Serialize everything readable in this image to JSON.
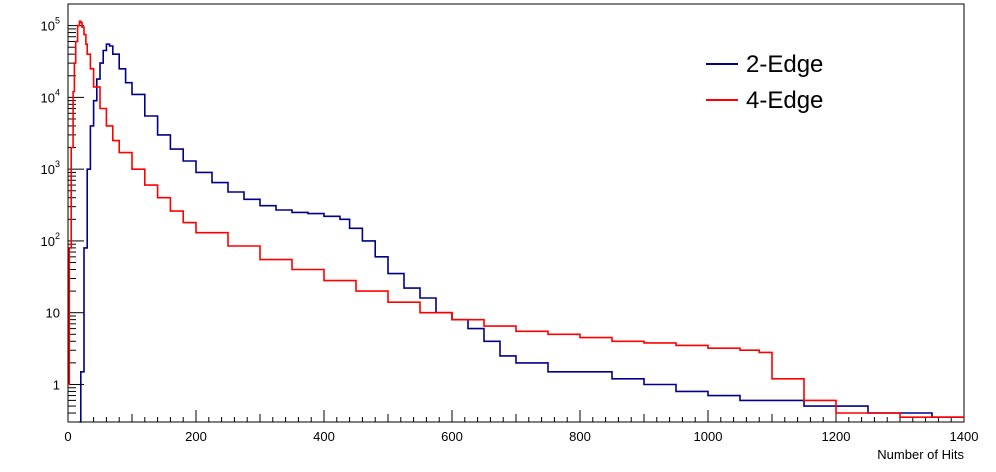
{
  "chart_data": {
    "type": "line",
    "title": "",
    "xlabel": "Number of Hits",
    "ylabel": "",
    "xlim": [
      0,
      1400
    ],
    "y_scale": "log",
    "ylim": [
      0.3,
      200000
    ],
    "x_ticks": [
      {
        "value": 0,
        "label": "0"
      },
      {
        "value": 200,
        "label": "200"
      },
      {
        "value": 400,
        "label": "400"
      },
      {
        "value": 600,
        "label": "600"
      },
      {
        "value": 800,
        "label": "800"
      },
      {
        "value": 1000,
        "label": "1000"
      },
      {
        "value": 1200,
        "label": "1200"
      },
      {
        "value": 1400,
        "label": "1400"
      }
    ],
    "y_ticks": [
      {
        "value": 1,
        "label": "1"
      },
      {
        "value": 10,
        "label": "10"
      },
      {
        "value": 100,
        "label": "10",
        "exp": "2"
      },
      {
        "value": 1000,
        "label": "10",
        "exp": "3"
      },
      {
        "value": 10000,
        "label": "10",
        "exp": "4"
      },
      {
        "value": 100000,
        "label": "10",
        "exp": "5"
      }
    ],
    "legend_position": "top-right",
    "grid": false,
    "series": [
      {
        "name": "2-Edge",
        "color": "#00008b",
        "x": [
          18,
          20,
          25,
          30,
          35,
          40,
          45,
          50,
          55,
          60,
          65,
          70,
          80,
          90,
          100,
          120,
          140,
          160,
          180,
          200,
          225,
          250,
          275,
          300,
          325,
          350,
          375,
          400,
          425,
          440,
          460,
          480,
          500,
          525,
          550,
          575,
          600,
          625,
          650,
          675,
          700,
          750,
          800,
          850,
          900,
          950,
          1000,
          1050,
          1100,
          1150,
          1200,
          1250,
          1300,
          1350,
          1400
        ],
        "y": [
          0.3,
          1.5,
          80,
          1000,
          4000,
          9000,
          18000,
          30000,
          45000,
          55000,
          52000,
          40000,
          25000,
          16000,
          11000,
          5500,
          3000,
          1900,
          1300,
          900,
          650,
          480,
          380,
          310,
          270,
          250,
          240,
          220,
          200,
          150,
          100,
          60,
          35,
          22,
          16,
          10,
          8,
          6,
          4,
          2.5,
          2,
          1.5,
          1.5,
          1.2,
          1,
          0.8,
          0.7,
          0.6,
          0.6,
          0.5,
          0.5,
          0.4,
          0.4,
          0.35,
          0.35
        ]
      },
      {
        "name": "4-Edge",
        "color": "#ff0000",
        "x": [
          0,
          2,
          5,
          8,
          10,
          12,
          15,
          18,
          20,
          22,
          25,
          28,
          30,
          35,
          40,
          50,
          60,
          70,
          80,
          100,
          120,
          140,
          160,
          180,
          200,
          250,
          300,
          350,
          400,
          450,
          500,
          550,
          600,
          650,
          700,
          750,
          800,
          850,
          900,
          950,
          1000,
          1050,
          1080,
          1100,
          1150,
          1200,
          1300,
          1400
        ],
        "y": [
          1,
          80,
          2000,
          12000,
          30000,
          60000,
          100000,
          115000,
          110000,
          95000,
          75000,
          55000,
          40000,
          25000,
          14000,
          7000,
          4000,
          2500,
          1700,
          1000,
          600,
          400,
          260,
          180,
          130,
          85,
          55,
          40,
          28,
          20,
          14,
          10,
          8,
          6.5,
          5.5,
          5,
          4.5,
          4,
          3.8,
          3.5,
          3.2,
          3,
          2.8,
          1.2,
          0.6,
          0.4,
          0.35,
          0.35
        ]
      }
    ]
  }
}
